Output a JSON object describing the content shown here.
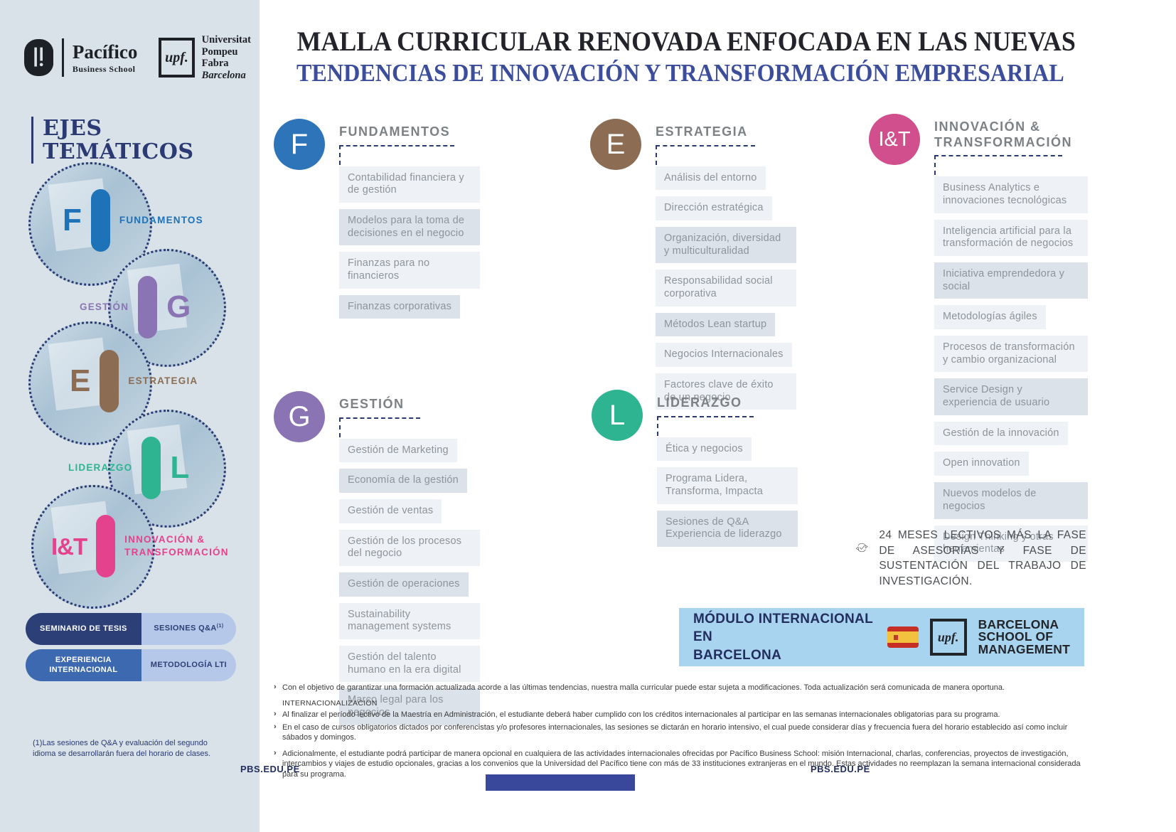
{
  "theme": {
    "sidebar_bg": "#d8e2e8",
    "navy": "#2b3a73",
    "title_dark": "#23242b",
    "title_blue": "#3b4d9b",
    "item_bg_light": "#eef1f5",
    "item_bg_dark": "#dce2ea",
    "item_text": "#8d949c",
    "banner_bg": "#a9d4f0",
    "bottom_bar": "#39489b"
  },
  "logos": {
    "pacifico_name": "Pacífico",
    "pacifico_sub": "Business School",
    "upf_mark": "upf.",
    "upf_line1": "Universitat",
    "upf_line2": "Pompeu Fabra",
    "upf_line3": "Barcelona"
  },
  "header": {
    "title_line1": "MALLA CURRICULAR RENOVADA ENFOCADA EN LAS NUEVAS",
    "title_line2": "TENDENCIAS DE INNOVACIÓN Y TRANSFORMACIÓN EMPRESARIAL"
  },
  "sidebar": {
    "heading_line1": "EJES",
    "heading_line2": "TEMÁTICOS",
    "axes": [
      {
        "letter": "F",
        "label": "FUNDAMENTOS",
        "color": "#1e72b8"
      },
      {
        "letter": "G",
        "label": "GESTIÓN",
        "color": "#8b74b3"
      },
      {
        "letter": "E",
        "label": "ESTRATEGIA",
        "color": "#8c6d54"
      },
      {
        "letter": "L",
        "label": "LIDERAZGO",
        "color": "#2fb492"
      },
      {
        "letter": "I&T",
        "label": "INNOVACIÓN & TRANSFORMACIÓN",
        "color": "#e5428d"
      }
    ],
    "buttons": [
      {
        "label": "SEMINARIO DE TESIS",
        "style": "dark"
      },
      {
        "label": "SESIONES Q&A",
        "sup": "(1)",
        "style": "light"
      },
      {
        "label": "EXPERIENCIA INTERNACIONAL",
        "style": "medium"
      },
      {
        "label": "METODOLOGÍA LTI",
        "style": "light"
      }
    ],
    "footnote": "(1)Las sesiones de Q&A y evaluación del segundo idioma se desarrollarán fuera del horario de clases."
  },
  "columns": [
    {
      "id": "fundamentos",
      "letter": "F",
      "title": "FUNDAMENTOS",
      "color": "#2d74b9",
      "items": [
        {
          "label": "Contabilidad financiera y de gestión",
          "shade": "light"
        },
        {
          "label": "Modelos para la toma de decisiones en el negocio",
          "shade": "dark"
        },
        {
          "label": "Finanzas para no financieros",
          "shade": "light"
        },
        {
          "label": "Finanzas corporativas",
          "shade": "dark"
        }
      ]
    },
    {
      "id": "estrategia",
      "letter": "E",
      "title": "ESTRATEGIA",
      "color": "#8c6d54",
      "items": [
        {
          "label": "Análisis del entorno",
          "shade": "light"
        },
        {
          "label": "Dirección estratégica",
          "shade": "light"
        },
        {
          "label": "Organización, diversidad y multiculturalidad",
          "shade": "dark"
        },
        {
          "label": "Responsabilidad social corporativa",
          "shade": "light"
        },
        {
          "label": "Métodos Lean startup",
          "shade": "dark"
        },
        {
          "label": "Negocios Internacionales",
          "shade": "light"
        },
        {
          "label": "Factores clave de éxito de un negocio",
          "shade": "light"
        }
      ]
    },
    {
      "id": "innovacion-transformacion",
      "letter": "I&T",
      "title": "INNOVACIÓN & TRANSFORMACIÓN",
      "color": "#d14f8d",
      "items": [
        {
          "label": "Business Analytics e innovaciones tecnológicas",
          "shade": "light"
        },
        {
          "label": "Inteligencia artificial para la transformación de negocios",
          "shade": "light"
        },
        {
          "label": "Iniciativa emprendedora y social",
          "shade": "dark"
        },
        {
          "label": "Metodologías ágiles",
          "shade": "light"
        },
        {
          "label": "Procesos de transformación y cambio organizacional",
          "shade": "light"
        },
        {
          "label": "Service Design y experiencia de usuario",
          "shade": "dark"
        },
        {
          "label": "Gestión de la innovación",
          "shade": "light"
        },
        {
          "label": "Open innovation",
          "shade": "light"
        },
        {
          "label": "Nuevos modelos de negocios",
          "shade": "dark"
        },
        {
          "label": "Design Thinking y otras herramientas",
          "shade": "light"
        }
      ]
    },
    {
      "id": "gestion",
      "letter": "G",
      "title": "GESTIÓN",
      "color": "#8b74b3",
      "items": [
        {
          "label": "Gestión de Marketing",
          "shade": "light"
        },
        {
          "label": "Economía de la gestión",
          "shade": "dark"
        },
        {
          "label": "Gestión de ventas",
          "shade": "light"
        },
        {
          "label": "Gestión de los procesos del negocio",
          "shade": "light"
        },
        {
          "label": "Gestión de operaciones",
          "shade": "dark"
        },
        {
          "label": "Sustainability management systems",
          "shade": "light"
        },
        {
          "label": "Gestión del talento humano en la era digital",
          "shade": "light"
        },
        {
          "label": "Marco legal para los negocios",
          "shade": "dark"
        }
      ]
    },
    {
      "id": "liderazgo",
      "letter": "L",
      "title": "LIDERAZGO",
      "color": "#2fb492",
      "items": [
        {
          "label": "Ética y negocios",
          "shade": "light"
        },
        {
          "label": "Programa Lidera, Transforma, Impacta",
          "shade": "light"
        },
        {
          "label": "Sesiones de Q&A Experiencia de liderazgo",
          "shade": "dark"
        }
      ]
    }
  ],
  "duration_note": {
    "icon": "cycle-check-icon",
    "text": "24 MESES LECTIVOS MÁS LA FASE DE ASESORÍAS Y FASE DE SUSTENTACIÓN DEL TRABAJO DE INVESTIGACIÓN."
  },
  "banner": {
    "title_line1": "MÓDULO INTERNACIONAL EN",
    "title_line2": "BARCELONA",
    "flag_icon": "spain-flag",
    "upf_mark": "upf.",
    "logo_lines": [
      "BARCELONA",
      "SCHOOL OF",
      "MANAGEMENT"
    ]
  },
  "footnotes": {
    "bullet_icon": "chevron-right",
    "intro": "Con el objetivo de garantizar una formación actualizada acorde a las últimas tendencias, nuestra malla curricular puede estar sujeta a modificaciones. Toda actualización será comunicada de manera oportuna.",
    "section_title": "INTERNACIONALIZACIÓN",
    "items": [
      "Al finalizar el período lectivo de la Maestría en Administración, el estudiante deberá haber cumplido con los créditos internacionales al participar en las semanas internacionales obligatorias para su programa.",
      "En el caso de cursos obligatorios dictados por conferencistas y/o profesores internacionales, las sesiones se dictarán en horario intensivo, el cual puede considerar días y frecuencia fuera del horario establecido así como incluir sábados y domingos."
    ],
    "additional": "Adicionalmente, el estudiante podrá participar de manera opcional en cualquiera de las actividades internacionales ofrecidas por Pacífico Business School: misión Internacional, charlas, conferencias, proyectos de investigación, intercambios y viajes de estudio opcionales, gracias a los convenios que la Universidad del Pacífico tiene con más de 33 instituciones extranjeras en el mundo. Estas actividades no reemplazan la semana internacional considerada para su programa."
  },
  "footer": {
    "left_url": "PBS.EDU.PE",
    "right_url": "PBS.EDU.PE"
  }
}
